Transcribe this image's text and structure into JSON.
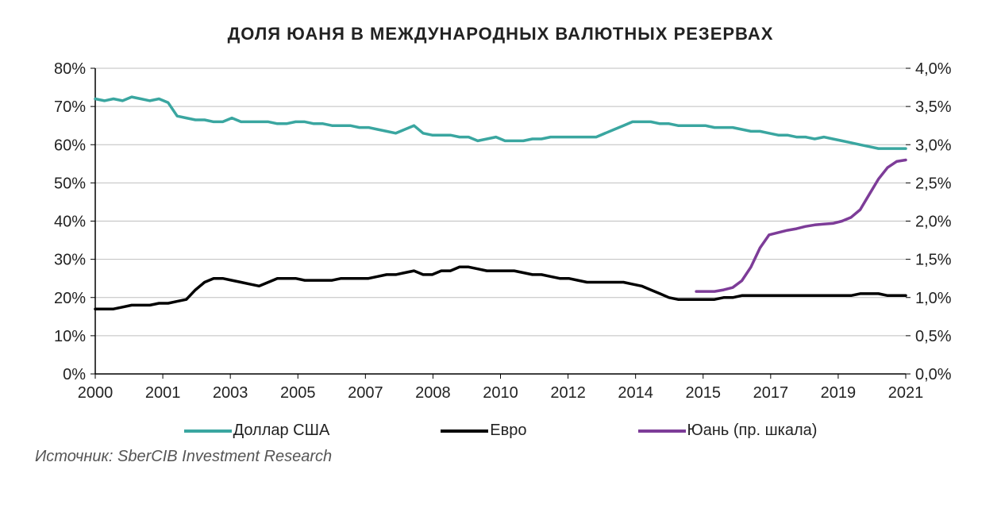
{
  "chart": {
    "title": "ДОЛЯ ЮАНЯ В МЕЖДУНАРОДНЫХ ВАЛЮТНЫХ РЕЗЕРВАХ",
    "title_fontsize": 22,
    "source": "Источник: SberCIB Investment Research",
    "background_color": "#ffffff",
    "axis_color": "#000000",
    "grid_color": "#bfbfbf",
    "left_axis": {
      "min": 0,
      "max": 80,
      "step": 10,
      "suffix": "%",
      "fontsize": 20
    },
    "right_axis": {
      "min": 0.0,
      "max": 4.0,
      "step": 0.5,
      "suffix": "%",
      "decimal_sep": ",",
      "decimals": 1,
      "fontsize": 20
    },
    "x_ticks": [
      "2000",
      "2001",
      "2003",
      "2005",
      "2007",
      "2008",
      "2010",
      "2012",
      "2014",
      "2015",
      "2017",
      "2019",
      "2021"
    ],
    "x_fontsize": 20,
    "n_quarters": 90,
    "series": {
      "usd": {
        "label": "Доллар США",
        "color": "#3aa6a0",
        "line_width": 3.5,
        "axis": "left",
        "legend_color": "#3aa6a0",
        "data": [
          72,
          71.5,
          72,
          71.5,
          72.5,
          72,
          71.5,
          72,
          71,
          67.5,
          67,
          66.5,
          66.5,
          66,
          66,
          67,
          66,
          66,
          66,
          66,
          65.5,
          65.5,
          66,
          66,
          65.5,
          65.5,
          65,
          65,
          65,
          64.5,
          64.5,
          64,
          63.5,
          63,
          64,
          65,
          63,
          62.5,
          62.5,
          62.5,
          62,
          62,
          61,
          61.5,
          62,
          61,
          61,
          61,
          61.5,
          61.5,
          62,
          62,
          62,
          62,
          62,
          62,
          63,
          64,
          65,
          66,
          66,
          66,
          65.5,
          65.5,
          65,
          65,
          65,
          65,
          64.5,
          64.5,
          64.5,
          64,
          63.5,
          63.5,
          63,
          62.5,
          62.5,
          62,
          62,
          61.5,
          62,
          61.5,
          61,
          60.5,
          60,
          59.5,
          59,
          59,
          59,
          59
        ]
      },
      "eur": {
        "label": "Евро",
        "color": "#000000",
        "line_width": 3.5,
        "axis": "left",
        "legend_color": "#000000",
        "data": [
          17,
          17,
          17,
          17.5,
          18,
          18,
          18,
          18.5,
          18.5,
          19,
          19.5,
          22,
          24,
          25,
          25,
          24.5,
          24,
          23.5,
          23,
          24,
          25,
          25,
          25,
          24.5,
          24.5,
          24.5,
          24.5,
          25,
          25,
          25,
          25,
          25.5,
          26,
          26,
          26.5,
          27,
          26,
          26,
          27,
          27,
          28,
          28,
          27.5,
          27,
          27,
          27,
          27,
          26.5,
          26,
          26,
          25.5,
          25,
          25,
          24.5,
          24,
          24,
          24,
          24,
          24,
          23.5,
          23,
          22,
          21,
          20,
          19.5,
          19.5,
          19.5,
          19.5,
          19.5,
          20,
          20,
          20.5,
          20.5,
          20.5,
          20.5,
          20.5,
          20.5,
          20.5,
          20.5,
          20.5,
          20.5,
          20.5,
          20.5,
          20.5,
          21,
          21,
          21,
          20.5,
          20.5,
          20.5
        ]
      },
      "cny": {
        "label": "Юань (пр. шкала)",
        "color": "#7d3c98",
        "line_width": 3.5,
        "axis": "right",
        "legend_color": "#7d3c98",
        "start_index": 66,
        "data": [
          1.08,
          1.08,
          1.08,
          1.1,
          1.13,
          1.22,
          1.4,
          1.65,
          1.82,
          1.85,
          1.88,
          1.9,
          1.93,
          1.95,
          1.96,
          1.97,
          2.0,
          2.05,
          2.15,
          2.35,
          2.55,
          2.7,
          2.78,
          2.8
        ]
      }
    },
    "legend": {
      "fontsize": 20,
      "swatch_width": 60,
      "swatch_thickness": 4
    }
  }
}
